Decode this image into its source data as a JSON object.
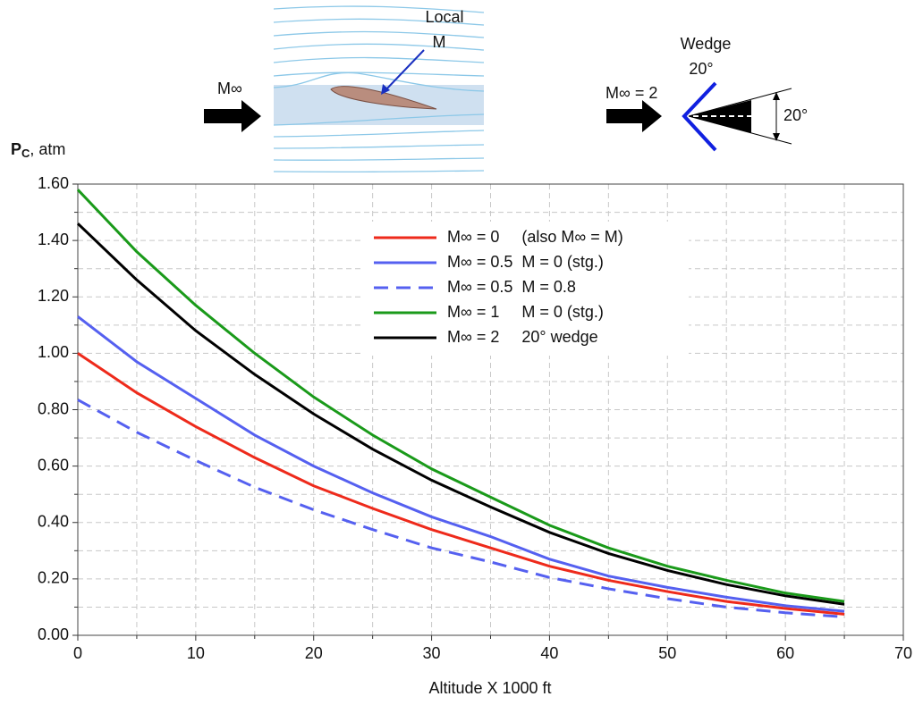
{
  "chart_data": {
    "type": "line",
    "ylabel_main": "P",
    "ylabel_sub": "C",
    "ylabel_rest": ", atm",
    "xlabel": "Altitude X 1000 ft",
    "x": [
      0,
      5,
      10,
      15,
      20,
      25,
      30,
      35,
      40,
      45,
      50,
      55,
      60,
      65
    ],
    "series": [
      {
        "name": "M∞ = 0     (also M∞ = M)",
        "color": "#ee2a1b",
        "dash": false,
        "values": [
          1.0,
          0.86,
          0.74,
          0.63,
          0.53,
          0.45,
          0.375,
          0.31,
          0.245,
          0.195,
          0.155,
          0.12,
          0.095,
          0.075
        ]
      },
      {
        "name": "M∞ = 0.5  M = 0 (stg.)",
        "color": "#5560f0",
        "dash": false,
        "values": [
          1.13,
          0.97,
          0.84,
          0.71,
          0.6,
          0.505,
          0.42,
          0.35,
          0.27,
          0.21,
          0.17,
          0.135,
          0.105,
          0.085
        ]
      },
      {
        "name": "M∞ = 0.5  M = 0.8",
        "color": "#5560f0",
        "dash": true,
        "values": [
          0.835,
          0.72,
          0.62,
          0.525,
          0.445,
          0.375,
          0.31,
          0.26,
          0.205,
          0.165,
          0.13,
          0.1,
          0.08,
          0.065
        ]
      },
      {
        "name": "M∞ = 1     M = 0 (stg.)",
        "color": "#1a9a1a",
        "dash": false,
        "values": [
          1.58,
          1.36,
          1.17,
          1.0,
          0.845,
          0.71,
          0.59,
          0.49,
          0.39,
          0.31,
          0.245,
          0.195,
          0.15,
          0.12
        ]
      },
      {
        "name": "M∞ = 2     20° wedge",
        "color": "#000000",
        "dash": false,
        "values": [
          1.46,
          1.26,
          1.08,
          0.925,
          0.785,
          0.66,
          0.55,
          0.455,
          0.365,
          0.29,
          0.23,
          0.18,
          0.14,
          0.11
        ]
      }
    ],
    "xlim": [
      0,
      70
    ],
    "xticks": [
      0,
      10,
      20,
      30,
      40,
      50,
      60,
      70
    ],
    "xminorticks": [
      5,
      15,
      25,
      35,
      45,
      55,
      65
    ],
    "ylim": [
      0,
      1.6
    ],
    "yticks": [
      {
        "value": 0,
        "label": "0.00"
      },
      {
        "value": 0.2,
        "label": "0.20"
      },
      {
        "value": 0.4,
        "label": "0.40"
      },
      {
        "value": 0.6,
        "label": "0.60"
      },
      {
        "value": 0.8,
        "label": "0.80"
      },
      {
        "value": 1.0,
        "label": "1.00"
      },
      {
        "value": 1.2,
        "label": "1.20"
      },
      {
        "value": 1.4,
        "label": "1.40"
      },
      {
        "value": 1.6,
        "label": "1.60"
      }
    ],
    "yminorticks": [
      0.1,
      0.3,
      0.5,
      0.7,
      0.9,
      1.1,
      1.3,
      1.5
    ],
    "grid": true,
    "legend": "upper right"
  },
  "diagrams": {
    "airfoil": {
      "freestream": "M∞",
      "local_1": "Local",
      "local_2": "M"
    },
    "wedge": {
      "title": "Wedge",
      "angle": "20°",
      "freestream": "M∞ = 2",
      "dimension": "20°"
    }
  }
}
